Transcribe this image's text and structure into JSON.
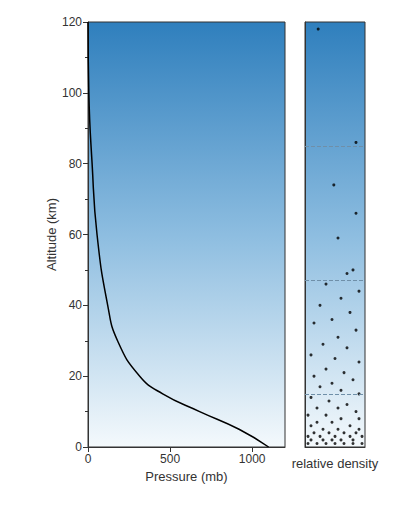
{
  "chart_data": [
    {
      "type": "line",
      "xlabel": "Pressure (mb)",
      "ylabel": "Altitude (km)",
      "x": [
        1100,
        920,
        680,
        455,
        315,
        180,
        120,
        55,
        25,
        5,
        0
      ],
      "values": [
        0,
        5,
        10,
        15,
        20,
        30,
        40,
        60,
        80,
        100,
        120
      ],
      "color": "#000000",
      "xlim": [
        0,
        1200
      ],
      "xticks": [
        0,
        500,
        1000
      ],
      "ylim": [
        0,
        120
      ],
      "yticks": [
        0,
        20,
        40,
        60,
        80,
        100,
        120
      ],
      "grid": false
    },
    {
      "type": "scatter",
      "xlabel": "relative density",
      "x": [
        0.22,
        0.85,
        0.48,
        0.85,
        0.55,
        0.8,
        0.7,
        0.35,
        0.9,
        0.6,
        0.25,
        0.75,
        0.45,
        0.15,
        0.85,
        0.55,
        0.3,
        0.7,
        0.1,
        0.5,
        0.9,
        0.35,
        0.65,
        0.15,
        0.8,
        0.45,
        0.25,
        0.6,
        0.9,
        0.1,
        0.4,
        0.7,
        0.2,
        0.55,
        0.85,
        0.35,
        0.05,
        0.6,
        0.9,
        0.2,
        0.45,
        0.75,
        0.1,
        0.3,
        0.55,
        0.9,
        0.15,
        0.4,
        0.65,
        0.85,
        0.05,
        0.25,
        0.5,
        0.75,
        0.95,
        0.1,
        0.3,
        0.45,
        0.6,
        0.8,
        0.05,
        0.2,
        0.35,
        0.5,
        0.65,
        0.8,
        0.95
      ],
      "values": [
        118,
        86,
        74,
        66,
        59,
        50,
        49,
        46,
        44,
        42,
        40,
        38,
        36,
        35,
        33,
        31,
        29,
        28,
        26,
        25,
        24,
        22,
        21,
        20,
        19,
        18,
        17,
        16,
        15,
        14,
        13,
        12,
        11,
        11,
        10,
        9,
        9,
        8,
        8,
        7,
        7,
        6,
        6,
        5,
        5,
        5,
        4,
        4,
        4,
        4,
        3,
        3,
        3,
        3,
        3,
        2,
        2,
        2,
        2,
        2,
        1,
        1,
        1,
        1,
        1,
        1,
        1
      ],
      "color": "#000000",
      "marker": "circle",
      "boundaries": [
        15,
        47,
        85
      ],
      "xlim": [
        0,
        1
      ],
      "ylim": [
        0,
        120
      ],
      "tick_labels": false,
      "grid": false
    }
  ]
}
